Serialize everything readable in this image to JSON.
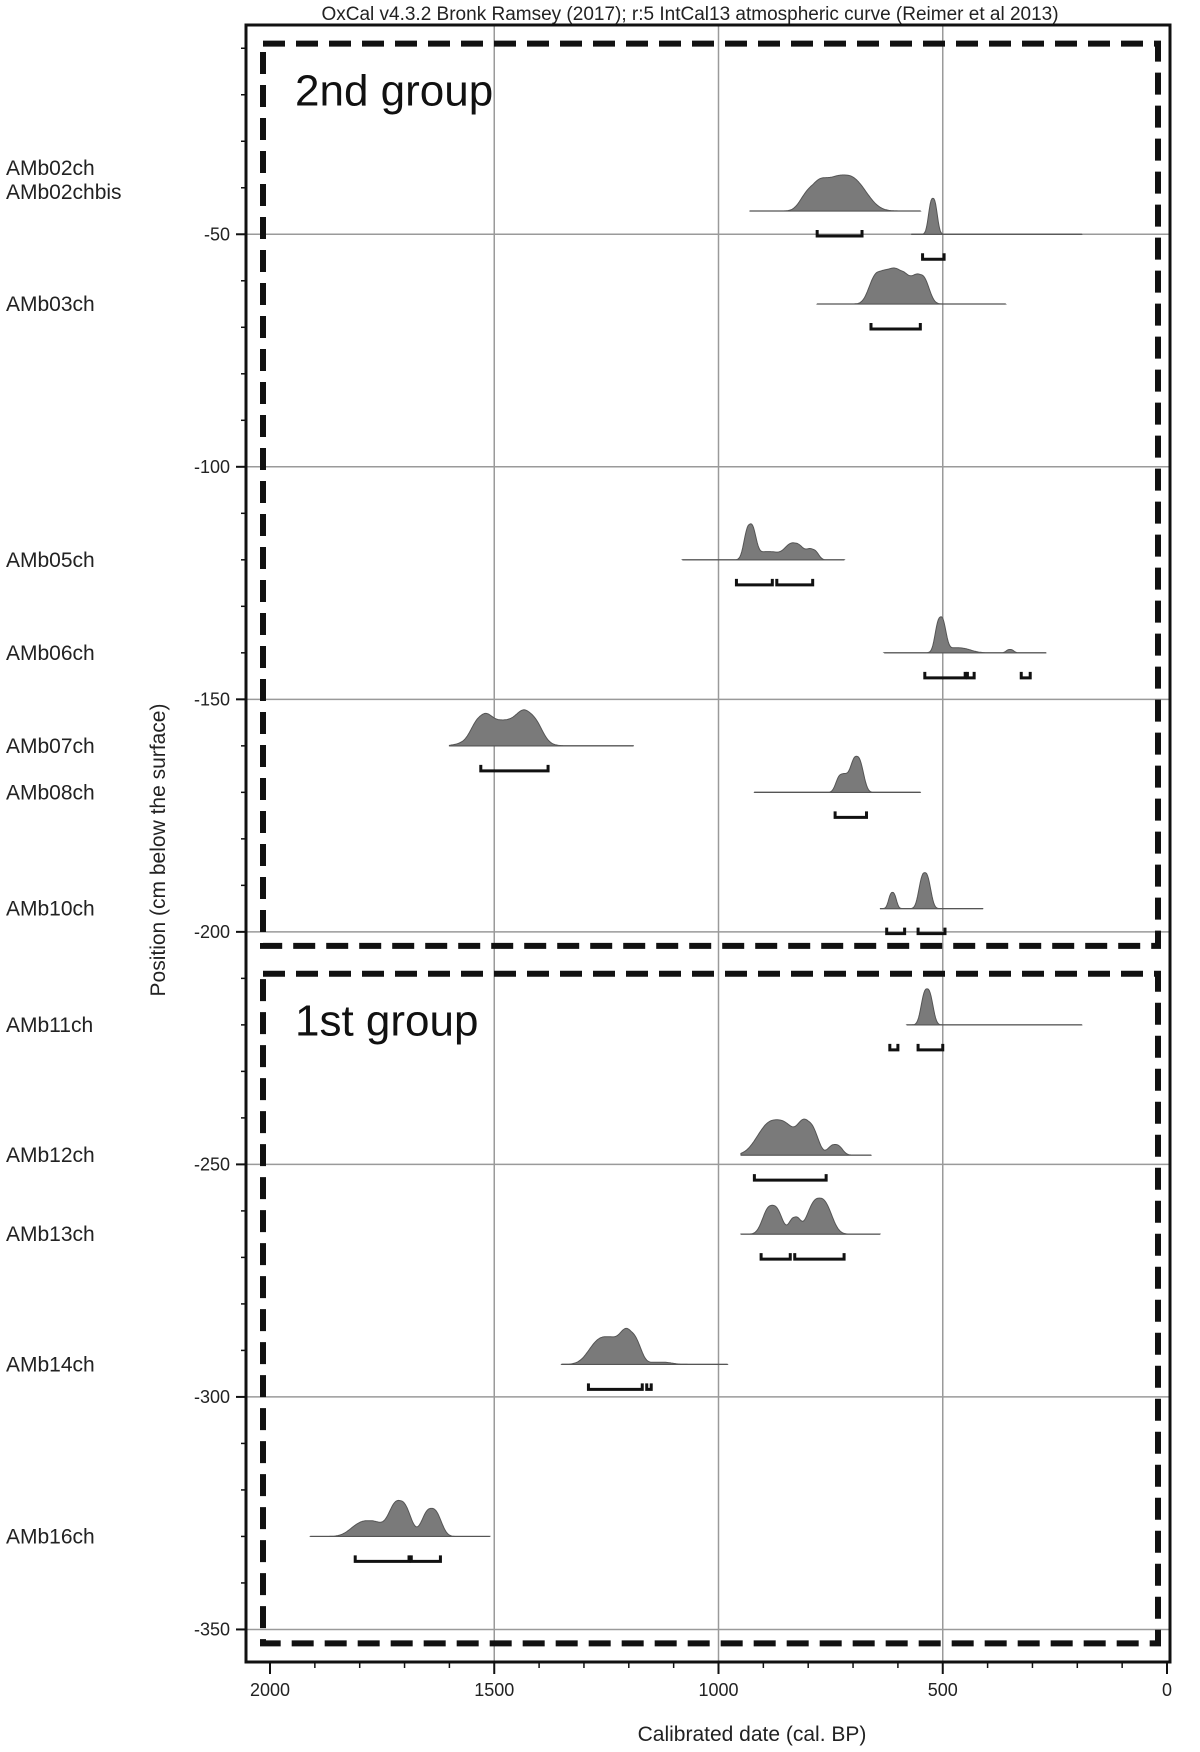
{
  "header": "OxCal v4.3.2 Bronk Ramsey (2017); r:5 IntCal13 atmospheric curve (Reimer et al 2013)",
  "chart_data": {
    "type": "calibrated-age-depth plot",
    "xlabel": "Calibrated date (cal. BP)",
    "ylabel": "Position (cm below the surface)",
    "xlim": [
      2000,
      0
    ],
    "ylim": [
      -357,
      -5
    ],
    "x_ticks": [
      2000,
      1500,
      1000,
      500,
      0
    ],
    "y_ticks": [
      -50,
      -100,
      -150,
      -200,
      -250,
      -300,
      -350
    ],
    "grid": true,
    "groups": [
      {
        "label": "2nd group",
        "top": -9,
        "bottom": -203
      },
      {
        "label": "1st group",
        "top": -209,
        "bottom": -353
      }
    ],
    "samples": [
      {
        "name": "AMb02ch",
        "depth": -45,
        "range": [
          930,
          550
        ],
        "peaks": [
          {
            "x": 720,
            "h": 0.95,
            "w": 45
          },
          {
            "x": 790,
            "h": 0.5,
            "w": 25
          }
        ],
        "hpd": [
          [
            780,
            680
          ]
        ]
      },
      {
        "name": "AMb02chbis",
        "depth": -50,
        "range": [
          570,
          190
        ],
        "peaks": [
          {
            "x": 522,
            "h": 1.0,
            "w": 9
          }
        ],
        "hpd": [
          [
            545,
            497
          ]
        ]
      },
      {
        "name": "AMb03ch",
        "depth": -65,
        "range": [
          780,
          360
        ],
        "peaks": [
          {
            "x": 640,
            "h": 1.0,
            "w": 22
          },
          {
            "x": 595,
            "h": 1.0,
            "w": 20
          },
          {
            "x": 550,
            "h": 0.9,
            "w": 18
          }
        ],
        "hpd": [
          [
            660,
            550
          ]
        ]
      },
      {
        "name": "AMb05ch",
        "depth": -120,
        "range": [
          1080,
          720
        ],
        "peaks": [
          {
            "x": 930,
            "h": 1.0,
            "w": 12
          },
          {
            "x": 890,
            "h": 0.25,
            "w": 30
          },
          {
            "x": 830,
            "h": 0.5,
            "w": 20
          },
          {
            "x": 790,
            "h": 0.3,
            "w": 12
          }
        ],
        "hpd": [
          [
            960,
            880
          ],
          [
            870,
            790
          ]
        ]
      },
      {
        "name": "AMb06ch",
        "depth": -140,
        "range": [
          630,
          270
        ],
        "peaks": [
          {
            "x": 505,
            "h": 1.0,
            "w": 11
          },
          {
            "x": 470,
            "h": 0.15,
            "w": 30
          },
          {
            "x": 350,
            "h": 0.1,
            "w": 8
          }
        ],
        "hpd": [
          [
            540,
            450
          ],
          [
            445,
            430
          ],
          [
            325,
            305
          ]
        ]
      },
      {
        "name": "AMb07ch",
        "depth": -160,
        "range": [
          1600,
          1190
        ],
        "peaks": [
          {
            "x": 1480,
            "h": 1.0,
            "w": 55
          },
          {
            "x": 1420,
            "h": 0.75,
            "w": 25
          },
          {
            "x": 1530,
            "h": 0.5,
            "w": 20
          }
        ],
        "hpd": [
          [
            1530,
            1380
          ]
        ]
      },
      {
        "name": "AMb08ch",
        "depth": -170,
        "range": [
          920,
          550
        ],
        "peaks": [
          {
            "x": 692,
            "h": 1.0,
            "w": 14
          },
          {
            "x": 725,
            "h": 0.5,
            "w": 12
          }
        ],
        "hpd": [
          [
            740,
            670
          ]
        ]
      },
      {
        "name": "AMb10ch",
        "depth": -195,
        "range": [
          640,
          410
        ],
        "peaks": [
          {
            "x": 540,
            "h": 1.0,
            "w": 12
          },
          {
            "x": 612,
            "h": 0.45,
            "w": 8
          }
        ],
        "hpd": [
          [
            625,
            585
          ],
          [
            555,
            495
          ]
        ]
      },
      {
        "name": "AMb11ch",
        "depth": -220,
        "range": [
          580,
          190
        ],
        "peaks": [
          {
            "x": 535,
            "h": 1.0,
            "w": 12
          },
          {
            "x": 605,
            "h": 0.15,
            "w": 6
          }
        ],
        "hpd": [
          [
            618,
            600
          ],
          [
            555,
            500
          ]
        ]
      },
      {
        "name": "AMb12ch",
        "depth": -248,
        "range": [
          950,
          660
        ],
        "peaks": [
          {
            "x": 870,
            "h": 1.0,
            "w": 40
          },
          {
            "x": 800,
            "h": 0.85,
            "w": 20
          },
          {
            "x": 740,
            "h": 0.3,
            "w": 15
          }
        ],
        "hpd": [
          [
            920,
            760
          ]
        ]
      },
      {
        "name": "AMb13ch",
        "depth": -265,
        "range": [
          950,
          640
        ],
        "peaks": [
          {
            "x": 880,
            "h": 0.8,
            "w": 20
          },
          {
            "x": 775,
            "h": 1.0,
            "w": 25
          },
          {
            "x": 830,
            "h": 0.45,
            "w": 12
          }
        ],
        "hpd": [
          [
            905,
            840
          ],
          [
            830,
            720
          ]
        ]
      },
      {
        "name": "AMb14ch",
        "depth": -293,
        "range": [
          1350,
          980
        ],
        "peaks": [
          {
            "x": 1250,
            "h": 1.0,
            "w": 35
          },
          {
            "x": 1195,
            "h": 1.0,
            "w": 20
          },
          {
            "x": 1130,
            "h": 0.08,
            "w": 25
          }
        ],
        "hpd": [
          [
            1290,
            1170
          ],
          [
            1160,
            1150
          ]
        ]
      },
      {
        "name": "AMb16ch",
        "depth": -330,
        "range": [
          1910,
          1510
        ],
        "peaks": [
          {
            "x": 1710,
            "h": 1.0,
            "w": 22
          },
          {
            "x": 1640,
            "h": 0.8,
            "w": 20
          },
          {
            "x": 1780,
            "h": 0.45,
            "w": 35
          }
        ],
        "hpd": [
          [
            1810,
            1690
          ],
          [
            1685,
            1620
          ]
        ]
      }
    ]
  }
}
